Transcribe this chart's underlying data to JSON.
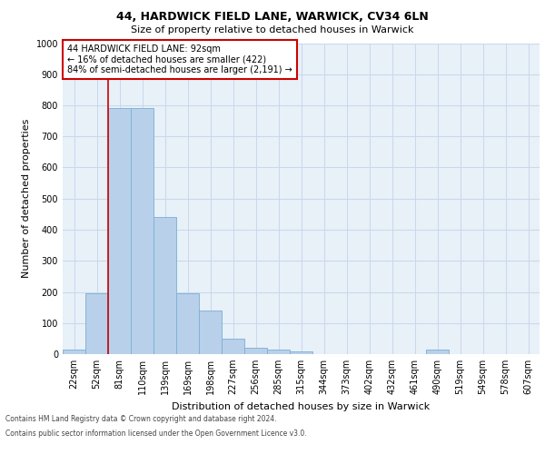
{
  "title_line1": "44, HARDWICK FIELD LANE, WARWICK, CV34 6LN",
  "title_line2": "Size of property relative to detached houses in Warwick",
  "xlabel": "Distribution of detached houses by size in Warwick",
  "ylabel": "Number of detached properties",
  "categories": [
    "22sqm",
    "52sqm",
    "81sqm",
    "110sqm",
    "139sqm",
    "169sqm",
    "198sqm",
    "227sqm",
    "256sqm",
    "285sqm",
    "315sqm",
    "344sqm",
    "373sqm",
    "402sqm",
    "432sqm",
    "461sqm",
    "490sqm",
    "519sqm",
    "549sqm",
    "578sqm",
    "607sqm"
  ],
  "values": [
    15,
    195,
    790,
    790,
    440,
    195,
    140,
    50,
    20,
    15,
    10,
    0,
    0,
    0,
    0,
    0,
    15,
    0,
    0,
    0,
    0
  ],
  "bar_color": "#b8d0ea",
  "bar_edge_color": "#7aafd4",
  "vline_x": 1.5,
  "vline_color": "#cc0000",
  "annotation_text": "44 HARDWICK FIELD LANE: 92sqm\n← 16% of detached houses are smaller (422)\n84% of semi-detached houses are larger (2,191) →",
  "annotation_box_facecolor": "#ffffff",
  "annotation_box_edgecolor": "#cc0000",
  "ylim": [
    0,
    1000
  ],
  "yticks": [
    0,
    100,
    200,
    300,
    400,
    500,
    600,
    700,
    800,
    900,
    1000
  ],
  "grid_color": "#c8d8ec",
  "background_color": "#e8f0f8",
  "footer_line1": "Contains HM Land Registry data © Crown copyright and database right 2024.",
  "footer_line2": "Contains public sector information licensed under the Open Government Licence v3.0.",
  "title1_fontsize": 9,
  "title2_fontsize": 8,
  "ylabel_fontsize": 8,
  "xlabel_fontsize": 8,
  "tick_fontsize": 7,
  "annot_fontsize": 7,
  "footer_fontsize": 5.5
}
